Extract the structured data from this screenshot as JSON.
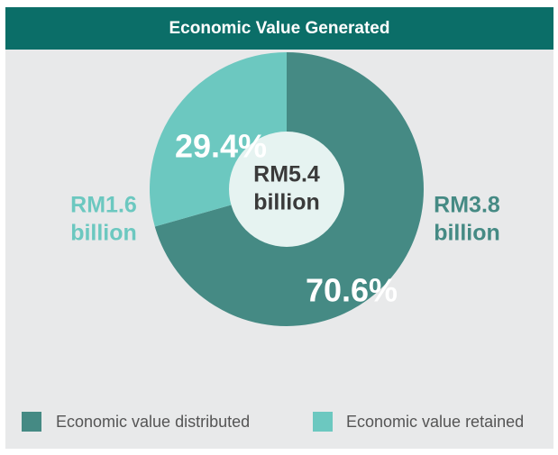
{
  "chart_data": {
    "type": "pie",
    "title": "Economic Value Generated",
    "categories": [
      "Economic value distributed",
      "Economic value retained"
    ],
    "values": [
      70.6,
      29.4
    ],
    "value_labels": [
      "70.6%",
      "29.4%"
    ],
    "colors": [
      "#458a84",
      "#6cc8c0"
    ],
    "amount_labels": [
      [
        "RM3.8",
        "billion"
      ],
      [
        "RM1.6",
        "billion"
      ]
    ],
    "center_label": [
      "RM5.4",
      "billion"
    ],
    "donut": true,
    "legend": "bottom"
  }
}
